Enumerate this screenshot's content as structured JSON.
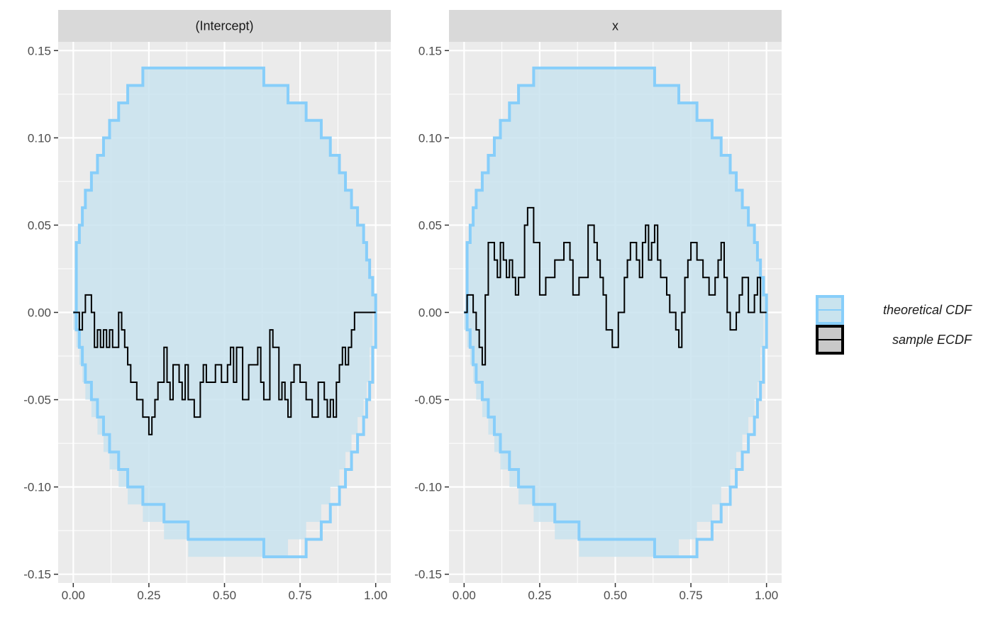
{
  "chart_data": {
    "type": "line",
    "layout": "faceted",
    "grid": true,
    "legend_position": "right",
    "colors": {
      "band_fill": "#c9e3ee",
      "band_line": "#87cefa",
      "ecdf_line": "#000000",
      "panel_bg": "#ebebeb",
      "strip_bg": "#d9d9d9",
      "legend_ecdf_fill": "#c8c8c8"
    },
    "xlim": [
      -0.05,
      1.05
    ],
    "ylim": [
      -0.155,
      0.155
    ],
    "x_ticks": [
      0,
      0.25,
      0.5,
      0.75,
      1
    ],
    "x_tick_labels": [
      "0.00",
      "0.25",
      "0.50",
      "0.75",
      "1.00"
    ],
    "y_ticks": [
      -0.15,
      -0.1,
      -0.05,
      0,
      0.05,
      0.1,
      0.15
    ],
    "y_tick_labels": [
      "-0.15",
      "-0.10",
      "-0.05",
      "0.00",
      "0.05",
      "0.10",
      "0.15"
    ],
    "legend": [
      {
        "key": "band",
        "label": "theoretical CDF"
      },
      {
        "key": "ecdf",
        "label": "sample ECDF"
      }
    ],
    "band": {
      "x": [
        0,
        0.01,
        0.02,
        0.03,
        0.04,
        0.06,
        0.08,
        0.1,
        0.12,
        0.15,
        0.18,
        0.23,
        0.3,
        0.38,
        0.63,
        0.71,
        0.77,
        0.82,
        0.85,
        0.88,
        0.9,
        0.92,
        0.94,
        0.96,
        0.97,
        0.98,
        0.99,
        1.0
      ],
      "upper": [
        0.0,
        0.04,
        0.05,
        0.06,
        0.07,
        0.08,
        0.09,
        0.1,
        0.11,
        0.12,
        0.13,
        0.14,
        0.14,
        0.14,
        0.13,
        0.12,
        0.11,
        0.1,
        0.09,
        0.08,
        0.07,
        0.06,
        0.05,
        0.04,
        0.03,
        0.02,
        0.01,
        0.0
      ],
      "lower": [
        0.0,
        -0.01,
        -0.02,
        -0.03,
        -0.04,
        -0.05,
        -0.06,
        -0.07,
        -0.08,
        -0.09,
        -0.1,
        -0.11,
        -0.12,
        -0.13,
        -0.14,
        -0.14,
        -0.13,
        -0.12,
        -0.11,
        -0.1,
        -0.09,
        -0.08,
        -0.07,
        -0.06,
        -0.05,
        -0.04,
        -0.02,
        0.0
      ]
    },
    "panels": [
      {
        "strip": "(Intercept)",
        "ecdf": {
          "x": [
            0,
            0.02,
            0.03,
            0.04,
            0.06,
            0.07,
            0.08,
            0.09,
            0.1,
            0.11,
            0.12,
            0.13,
            0.15,
            0.16,
            0.17,
            0.18,
            0.19,
            0.21,
            0.23,
            0.25,
            0.26,
            0.27,
            0.28,
            0.3,
            0.31,
            0.32,
            0.33,
            0.35,
            0.36,
            0.37,
            0.38,
            0.4,
            0.42,
            0.43,
            0.44,
            0.47,
            0.49,
            0.51,
            0.52,
            0.53,
            0.54,
            0.56,
            0.58,
            0.61,
            0.62,
            0.63,
            0.65,
            0.66,
            0.68,
            0.69,
            0.7,
            0.71,
            0.72,
            0.73,
            0.75,
            0.77,
            0.79,
            0.81,
            0.83,
            0.84,
            0.85,
            0.86,
            0.87,
            0.88,
            0.89,
            0.9,
            0.91,
            0.92,
            0.93,
            0.94,
            0.95,
            0.97,
            1.0
          ],
          "y": [
            0,
            -0.01,
            0,
            0.01,
            0,
            -0.02,
            -0.01,
            -0.02,
            -0.01,
            -0.02,
            -0.01,
            -0.02,
            0,
            -0.01,
            -0.02,
            -0.03,
            -0.04,
            -0.05,
            -0.06,
            -0.07,
            -0.06,
            -0.05,
            -0.04,
            -0.02,
            -0.04,
            -0.05,
            -0.03,
            -0.04,
            -0.05,
            -0.03,
            -0.05,
            -0.06,
            -0.04,
            -0.03,
            -0.04,
            -0.03,
            -0.04,
            -0.03,
            -0.02,
            -0.04,
            -0.02,
            -0.05,
            -0.03,
            -0.02,
            -0.04,
            -0.05,
            -0.01,
            -0.02,
            -0.05,
            -0.04,
            -0.05,
            -0.06,
            -0.04,
            -0.03,
            -0.04,
            -0.05,
            -0.06,
            -0.04,
            -0.05,
            -0.06,
            -0.05,
            -0.06,
            -0.04,
            -0.03,
            -0.02,
            -0.03,
            -0.02,
            -0.01,
            0,
            0,
            0,
            0,
            0
          ]
        }
      },
      {
        "strip": "x",
        "ecdf": {
          "x": [
            0,
            0.01,
            0.03,
            0.04,
            0.05,
            0.06,
            0.07,
            0.08,
            0.1,
            0.11,
            0.12,
            0.13,
            0.14,
            0.15,
            0.16,
            0.17,
            0.18,
            0.2,
            0.21,
            0.23,
            0.25,
            0.27,
            0.3,
            0.33,
            0.35,
            0.36,
            0.38,
            0.41,
            0.43,
            0.44,
            0.45,
            0.46,
            0.47,
            0.49,
            0.51,
            0.53,
            0.54,
            0.55,
            0.57,
            0.58,
            0.59,
            0.6,
            0.61,
            0.62,
            0.63,
            0.64,
            0.65,
            0.67,
            0.68,
            0.7,
            0.71,
            0.72,
            0.73,
            0.74,
            0.75,
            0.77,
            0.79,
            0.81,
            0.83,
            0.84,
            0.85,
            0.86,
            0.87,
            0.88,
            0.9,
            0.91,
            0.92,
            0.94,
            0.96,
            0.97,
            0.98,
            1.0
          ],
          "y": [
            0,
            0.01,
            0,
            -0.01,
            -0.02,
            -0.03,
            0.01,
            0.04,
            0.03,
            0.02,
            0.04,
            0.03,
            0.02,
            0.03,
            0.02,
            0.01,
            0.02,
            0.05,
            0.06,
            0.04,
            0.01,
            0.02,
            0.03,
            0.04,
            0.03,
            0.01,
            0.02,
            0.05,
            0.04,
            0.03,
            0.02,
            0.01,
            -0.01,
            -0.02,
            0.0,
            0.02,
            0.03,
            0.04,
            0.03,
            0.02,
            0.04,
            0.05,
            0.03,
            0.04,
            0.05,
            0.03,
            0.02,
            0.01,
            0.0,
            -0.01,
            -0.02,
            0.0,
            0.02,
            0.03,
            0.04,
            0.03,
            0.02,
            0.01,
            0.02,
            0.03,
            0.04,
            0.02,
            0.0,
            -0.01,
            0.0,
            0.01,
            0.02,
            0.0,
            0.01,
            0.02,
            0.0,
            0.0
          ]
        }
      }
    ]
  }
}
